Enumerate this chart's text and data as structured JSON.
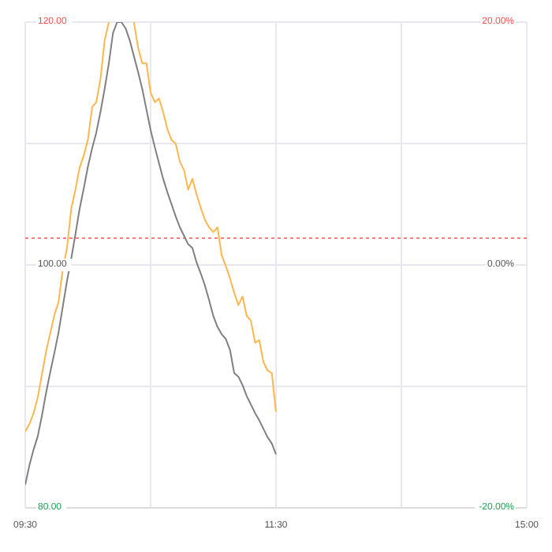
{
  "chart_data": {
    "type": "line",
    "categories": [
      "09:30",
      null,
      null,
      null,
      null,
      null,
      null,
      null,
      null,
      null,
      null,
      null,
      null,
      null,
      null,
      null,
      null,
      null,
      null,
      null,
      null,
      null,
      null,
      null,
      null,
      null,
      null,
      null,
      null,
      null,
      null,
      null,
      null,
      null,
      null,
      null,
      null,
      null,
      null,
      null,
      null,
      null,
      null,
      null,
      null,
      null,
      null,
      null,
      null,
      null,
      null,
      null,
      null,
      null,
      null,
      null,
      null,
      null,
      null,
      null,
      "11:30",
      null,
      null,
      null,
      null,
      null,
      null,
      null,
      null,
      null,
      null,
      null,
      null,
      null,
      null,
      null,
      null,
      null,
      null,
      null,
      null,
      null,
      null,
      null,
      null,
      null,
      null,
      null,
      null,
      null,
      null,
      null,
      null,
      null,
      null,
      null,
      null,
      null,
      null,
      null,
      null,
      null,
      null,
      null,
      null,
      null,
      null,
      null,
      null,
      null,
      null,
      null,
      null,
      null,
      null,
      null,
      null,
      null,
      null,
      null,
      "15:00"
    ],
    "ylim": [
      80,
      120
    ],
    "yticks": [
      {
        "value": 80,
        "label": "80.00"
      },
      {
        "value": 90,
        "label": null
      },
      {
        "value": 100,
        "label": "100.00"
      },
      {
        "value": 110,
        "label": null
      },
      {
        "value": 120,
        "label": "120.00"
      }
    ],
    "y2lim": [
      -20,
      20
    ],
    "y2ticks": [
      {
        "value": -20,
        "label": "-20.00%"
      },
      {
        "value": 0,
        "label": "0.00%"
      },
      {
        "value": 20,
        "label": "20.00%"
      }
    ],
    "grid": true,
    "marker": "none",
    "line_style": "solid",
    "ref_lines": [
      {
        "axis": "y",
        "value": 102.2,
        "color": "#f08080",
        "line_style": "dotted"
      }
    ],
    "series": [
      {
        "color": "#ffb74d",
        "values": [
          86.3,
          86.9,
          87.8,
          89.1,
          91.0,
          92.9,
          94.4,
          95.9,
          97.0,
          99.7,
          101.4,
          104.6,
          106.2,
          108.0,
          109.0,
          110.3,
          113.0,
          113.4,
          115.3,
          118.5,
          120.0,
          null,
          null,
          null,
          null,
          null,
          120.0,
          117.9,
          116.6,
          116.6,
          114.2,
          113.4,
          113.7,
          112.6,
          111.2,
          110.3,
          110.0,
          108.5,
          107.8,
          106.2,
          107.1,
          105.8,
          104.7,
          103.7,
          103.1,
          102.7,
          103.1,
          100.8,
          99.9,
          98.9,
          97.7,
          96.7,
          97.4,
          95.8,
          95.4,
          93.6,
          93.8,
          92.0,
          91.3,
          91.1,
          87.9,
          null,
          null,
          null,
          null,
          null,
          null,
          null,
          null,
          null,
          null,
          null,
          null,
          null,
          null,
          null,
          null,
          null,
          null,
          null,
          null,
          null,
          null,
          null,
          null,
          null,
          null,
          null,
          null,
          null,
          null,
          null,
          null,
          null,
          null,
          null,
          null,
          null,
          null,
          null,
          null,
          null,
          null,
          null,
          null,
          null,
          null,
          null,
          null,
          null,
          null,
          null,
          null,
          null,
          null,
          null,
          null,
          null,
          null,
          null,
          null
        ]
      },
      {
        "color": "#808080",
        "values": [
          81.9,
          83.5,
          84.8,
          85.9,
          87.6,
          89.5,
          91.2,
          92.8,
          94.5,
          96.6,
          98.7,
          100.5,
          102.5,
          104.6,
          106.3,
          108.1,
          109.6,
          110.9,
          112.6,
          114.5,
          116.6,
          119.1,
          120.0,
          120.0,
          119.5,
          118.5,
          117.2,
          115.9,
          114.5,
          112.8,
          111.1,
          109.7,
          108.4,
          107.1,
          106.0,
          105.0,
          104.0,
          103.1,
          102.4,
          101.7,
          101.4,
          100.2,
          99.3,
          98.3,
          97.1,
          95.8,
          94.9,
          94.3,
          93.9,
          93.0,
          91.1,
          90.8,
          90.1,
          89.2,
          88.5,
          87.8,
          87.2,
          86.5,
          85.8,
          85.3,
          84.4,
          null,
          null,
          null,
          null,
          null,
          null,
          null,
          null,
          null,
          null,
          null,
          null,
          null,
          null,
          null,
          null,
          null,
          null,
          null,
          null,
          null,
          null,
          null,
          null,
          null,
          null,
          null,
          null,
          null,
          null,
          null,
          null,
          null,
          null,
          null,
          null,
          null,
          null,
          null,
          null,
          null,
          null,
          null,
          null,
          null,
          null,
          null,
          null,
          null,
          null,
          null,
          null,
          null,
          null,
          null,
          null,
          null,
          null,
          null,
          null
        ]
      }
    ]
  }
}
